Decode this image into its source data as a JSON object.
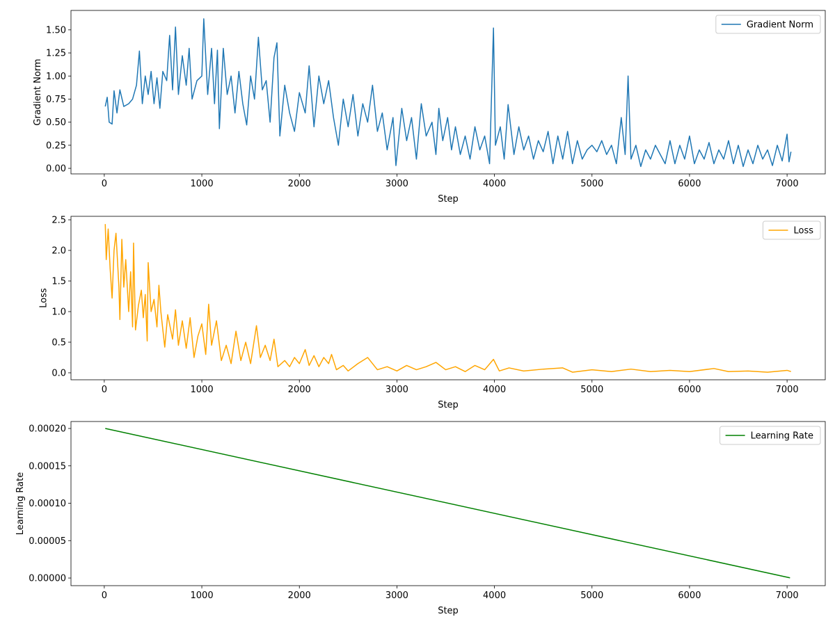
{
  "chart_data": [
    {
      "type": "line",
      "xlabel": "Step",
      "ylabel": "Gradient Norm",
      "legend": "upper right",
      "x": [
        10,
        30,
        50,
        80,
        100,
        130,
        160,
        200,
        250,
        290,
        330,
        360,
        390,
        420,
        450,
        480,
        510,
        540,
        570,
        600,
        640,
        670,
        700,
        730,
        760,
        800,
        840,
        870,
        900,
        950,
        1000,
        1020,
        1060,
        1100,
        1130,
        1160,
        1180,
        1220,
        1260,
        1300,
        1340,
        1380,
        1420,
        1460,
        1500,
        1540,
        1580,
        1620,
        1660,
        1700,
        1740,
        1770,
        1800,
        1850,
        1900,
        1950,
        2000,
        2060,
        2100,
        2150,
        2200,
        2250,
        2300,
        2350,
        2400,
        2450,
        2500,
        2550,
        2600,
        2650,
        2700,
        2750,
        2800,
        2850,
        2900,
        2960,
        2990,
        3050,
        3100,
        3150,
        3200,
        3250,
        3300,
        3360,
        3400,
        3430,
        3470,
        3520,
        3560,
        3600,
        3650,
        3700,
        3750,
        3800,
        3850,
        3900,
        3950,
        3990,
        4010,
        4060,
        4100,
        4140,
        4200,
        4250,
        4300,
        4350,
        4400,
        4450,
        4500,
        4550,
        4600,
        4650,
        4700,
        4750,
        4800,
        4850,
        4900,
        4950,
        5000,
        5050,
        5100,
        5150,
        5200,
        5250,
        5300,
        5340,
        5370,
        5400,
        5450,
        5500,
        5550,
        5600,
        5650,
        5700,
        5750,
        5800,
        5850,
        5900,
        5950,
        6000,
        6050,
        6100,
        6150,
        6200,
        6250,
        6300,
        6350,
        6400,
        6450,
        6500,
        6550,
        6600,
        6650,
        6700,
        6750,
        6800,
        6850,
        6900,
        6950,
        7000,
        7020,
        7040
      ],
      "series": [
        {
          "name": "Gradient Norm",
          "color": "#1f77b4",
          "values": [
            0.67,
            0.77,
            0.5,
            0.48,
            0.84,
            0.6,
            0.85,
            0.67,
            0.7,
            0.75,
            0.9,
            1.27,
            0.7,
            1.0,
            0.8,
            1.05,
            0.7,
            0.98,
            0.65,
            1.05,
            0.95,
            1.44,
            0.85,
            1.53,
            0.8,
            1.22,
            0.9,
            1.3,
            0.75,
            0.95,
            1.0,
            1.62,
            0.8,
            1.3,
            0.7,
            1.28,
            0.43,
            1.3,
            0.8,
            1.0,
            0.6,
            1.05,
            0.7,
            0.47,
            1.0,
            0.75,
            1.42,
            0.85,
            0.95,
            0.5,
            1.2,
            1.36,
            0.35,
            0.9,
            0.6,
            0.4,
            0.82,
            0.6,
            1.11,
            0.45,
            1.0,
            0.7,
            0.95,
            0.55,
            0.25,
            0.75,
            0.45,
            0.8,
            0.35,
            0.7,
            0.5,
            0.9,
            0.4,
            0.6,
            0.2,
            0.55,
            0.03,
            0.65,
            0.3,
            0.55,
            0.1,
            0.7,
            0.35,
            0.5,
            0.15,
            0.65,
            0.3,
            0.55,
            0.2,
            0.45,
            0.15,
            0.35,
            0.1,
            0.45,
            0.2,
            0.35,
            0.05,
            1.52,
            0.25,
            0.45,
            0.1,
            0.69,
            0.15,
            0.45,
            0.2,
            0.35,
            0.1,
            0.3,
            0.18,
            0.4,
            0.05,
            0.35,
            0.1,
            0.4,
            0.05,
            0.3,
            0.1,
            0.2,
            0.25,
            0.18,
            0.3,
            0.15,
            0.25,
            0.05,
            0.55,
            0.15,
            1.0,
            0.1,
            0.25,
            0.02,
            0.2,
            0.1,
            0.25,
            0.15,
            0.05,
            0.3,
            0.05,
            0.25,
            0.1,
            0.35,
            0.05,
            0.2,
            0.1,
            0.28,
            0.05,
            0.2,
            0.1,
            0.3,
            0.05,
            0.25,
            0.02,
            0.2,
            0.05,
            0.25,
            0.1,
            0.2,
            0.03,
            0.25,
            0.08,
            0.37,
            0.07,
            0.18
          ]
        }
      ],
      "xlim": [
        -341.5,
        7391.5
      ],
      "xticks": [
        0,
        1000,
        2000,
        3000,
        4000,
        5000,
        6000,
        7000
      ],
      "ylim": [
        -0.06,
        1.71
      ],
      "yticks": [
        {
          "value": 0,
          "label": "0.00"
        },
        0.25,
        {
          "value": 0.5,
          "label": "0.50"
        },
        0.75,
        {
          "value": 1,
          "label": "1.00"
        },
        1.25,
        {
          "value": 1.5,
          "label": "1.50"
        }
      ]
    },
    {
      "type": "line",
      "xlabel": "Step",
      "ylabel": "Loss",
      "legend": "upper right",
      "x": [
        10,
        20,
        40,
        60,
        80,
        100,
        120,
        150,
        160,
        180,
        200,
        220,
        250,
        270,
        290,
        300,
        320,
        350,
        380,
        400,
        420,
        440,
        450,
        480,
        510,
        540,
        560,
        580,
        620,
        650,
        700,
        730,
        760,
        800,
        840,
        880,
        920,
        960,
        1000,
        1040,
        1070,
        1100,
        1150,
        1200,
        1250,
        1300,
        1350,
        1400,
        1450,
        1500,
        1560,
        1600,
        1650,
        1700,
        1740,
        1780,
        1850,
        1900,
        1950,
        2000,
        2060,
        2100,
        2150,
        2200,
        2250,
        2300,
        2330,
        2380,
        2450,
        2500,
        2600,
        2700,
        2800,
        2900,
        3000,
        3100,
        3200,
        3300,
        3400,
        3500,
        3600,
        3700,
        3800,
        3900,
        3990,
        4050,
        4150,
        4300,
        4500,
        4700,
        4800,
        5000,
        5200,
        5400,
        5600,
        5800,
        6000,
        6250,
        6400,
        6600,
        6800,
        7000,
        7040
      ],
      "series": [
        {
          "name": "Loss",
          "color": "#ffa500",
          "values": [
            2.43,
            1.85,
            2.35,
            1.7,
            1.22,
            2.0,
            2.28,
            1.4,
            0.87,
            2.18,
            1.4,
            1.85,
            1.0,
            1.65,
            0.75,
            2.12,
            0.7,
            1.1,
            1.35,
            0.9,
            1.28,
            0.52,
            1.8,
            1.0,
            1.2,
            0.75,
            1.43,
            1.0,
            0.42,
            0.95,
            0.55,
            1.03,
            0.45,
            0.85,
            0.4,
            0.9,
            0.25,
            0.6,
            0.8,
            0.3,
            1.12,
            0.45,
            0.85,
            0.2,
            0.45,
            0.15,
            0.68,
            0.2,
            0.5,
            0.15,
            0.77,
            0.25,
            0.45,
            0.2,
            0.55,
            0.1,
            0.2,
            0.1,
            0.25,
            0.15,
            0.38,
            0.12,
            0.28,
            0.1,
            0.25,
            0.15,
            0.3,
            0.05,
            0.12,
            0.03,
            0.15,
            0.25,
            0.05,
            0.1,
            0.03,
            0.12,
            0.05,
            0.1,
            0.17,
            0.05,
            0.1,
            0.02,
            0.12,
            0.05,
            0.22,
            0.03,
            0.08,
            0.03,
            0.06,
            0.08,
            0.01,
            0.05,
            0.02,
            0.06,
            0.02,
            0.04,
            0.02,
            0.07,
            0.02,
            0.03,
            0.01,
            0.04,
            0.02
          ]
        }
      ],
      "xlim": [
        -341.5,
        7391.5
      ],
      "xticks": [
        0,
        1000,
        2000,
        3000,
        4000,
        5000,
        6000,
        7000
      ],
      "ylim": [
        -0.114,
        2.557
      ],
      "yticks": [
        {
          "value": 0,
          "label": "0.0"
        },
        0.5,
        {
          "value": 1,
          "label": "1.0"
        },
        1.5,
        {
          "value": 2,
          "label": "2.0"
        },
        2.5
      ]
    },
    {
      "type": "line",
      "xlabel": "Step",
      "ylabel": "Learning Rate",
      "legend": "upper right",
      "x": [
        10,
        7030
      ],
      "series": [
        {
          "name": "Learning Rate",
          "color": "#008000",
          "values": [
            0.0002,
            3e-07
          ]
        }
      ],
      "xlim": [
        -341.5,
        7391.5
      ],
      "xticks": [
        0,
        1000,
        2000,
        3000,
        4000,
        5000,
        6000,
        7000
      ],
      "ylim": [
        -1.02e-05,
        0.0002093
      ],
      "yticks": [
        {
          "value": 0,
          "label": "0.00000"
        },
        {
          "value": 5e-05,
          "label": "0.00005"
        },
        {
          "value": 0.0001,
          "label": "0.00010"
        },
        {
          "value": 0.00015,
          "label": "0.00015"
        },
        {
          "value": 0.0002,
          "label": "0.00020"
        }
      ]
    }
  ]
}
